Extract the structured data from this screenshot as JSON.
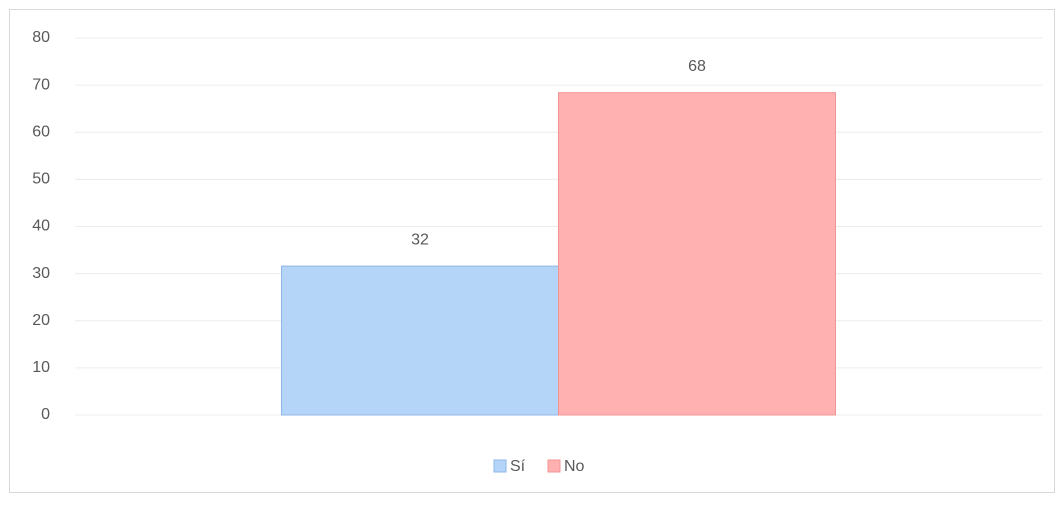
{
  "chart_data": {
    "type": "bar",
    "categories": [
      null
    ],
    "series": [
      {
        "name": "Sí",
        "color": "#b4d4f8",
        "values": [
          31.6
        ],
        "value_labels": [
          "32"
        ]
      },
      {
        "name": "No",
        "color": "#ffb0b0",
        "values": [
          68.4
        ],
        "value_labels": [
          "68"
        ]
      }
    ],
    "ylim": [
      0,
      80
    ],
    "yticks": [
      0,
      10,
      20,
      30,
      40,
      50,
      60,
      70,
      80
    ],
    "grid": true,
    "legend": "bottom"
  }
}
